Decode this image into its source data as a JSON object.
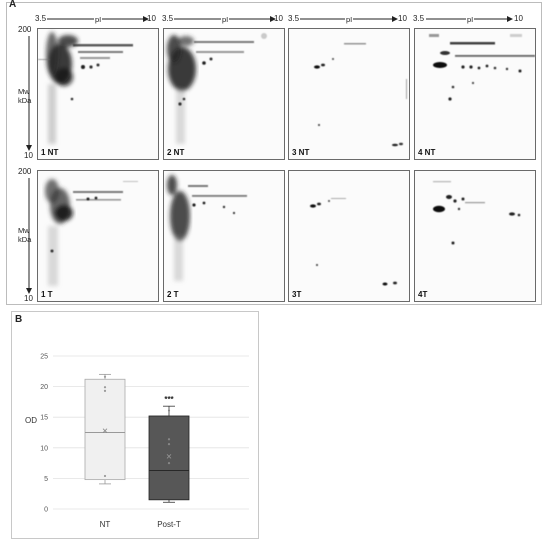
{
  "panel_a": {
    "letter": "A",
    "pi_axis": {
      "start": "3.5",
      "label": "pI",
      "end": "10"
    },
    "mw_axis": {
      "top": "200",
      "label_line1": "Mw",
      "label_line2": "kDa",
      "bottom": "10"
    },
    "rows": [
      {
        "gels": [
          "1 NT",
          "2 NT",
          "3 NT",
          "4 NT"
        ]
      },
      {
        "gels": [
          "1 T",
          "2 T",
          "3T",
          "4T"
        ]
      }
    ]
  },
  "panel_b": {
    "letter": "B",
    "chart_data": {
      "type": "boxplot",
      "ylabel": "OD",
      "ylim": [
        0,
        25
      ],
      "yticks": [
        0,
        5,
        10,
        15,
        20,
        25
      ],
      "grid": true,
      "categories": [
        "NT",
        "Post-T"
      ],
      "series": [
        {
          "category": "NT",
          "whisker_low": 4.1,
          "q1": 4.8,
          "median": 12.5,
          "q3": 21.2,
          "whisker_high": 22.0,
          "mean": 12.8,
          "points": [
            5.4,
            19.3,
            19.9,
            21.6
          ],
          "color": "#f0f0f0"
        },
        {
          "category": "Post-T",
          "whisker_low": 1.1,
          "q1": 1.5,
          "median": 6.3,
          "q3": 15.2,
          "whisker_high": 16.8,
          "mean": 8.6,
          "points": [
            7.5,
            10.6,
            11.4,
            16.1
          ],
          "color": "#575757"
        }
      ],
      "annotation": {
        "text": "***",
        "category": "Post-T",
        "y": 17.8
      }
    }
  }
}
